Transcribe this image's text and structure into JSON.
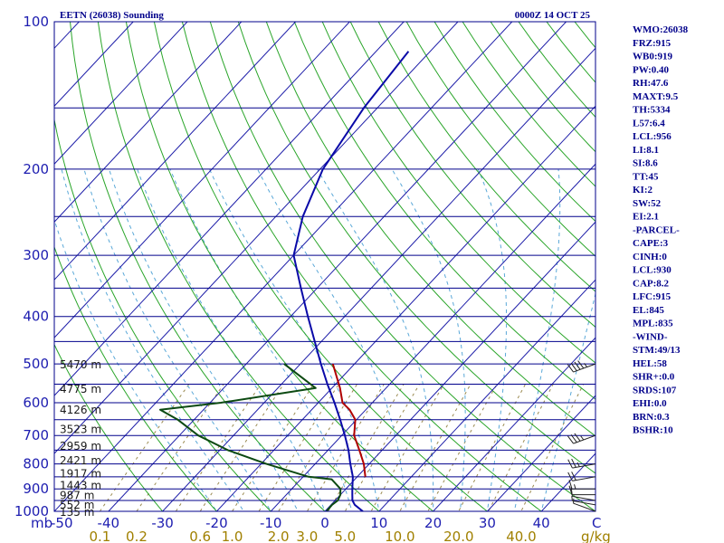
{
  "header": {
    "title": "EETN (26038) Sounding",
    "time": "0000Z 14 OCT 25"
  },
  "indices": [
    "WMO:26038",
    "FRZ:915",
    "WB0:919",
    "PW:0.40",
    "RH:47.6",
    "MAXT:9.5",
    "TH:5334",
    "L57:6.4",
    "LCL:956",
    "LI:8.1",
    "SI:8.6",
    "TT:45",
    "KI:2",
    "SW:52",
    "EI:2.1",
    "-PARCEL-",
    "CAPE:3",
    "CINH:0",
    "LCL:930",
    "CAP:8.2",
    "LFC:915",
    "EL:845",
    "MPL:835",
    "-WIND-",
    "STM:49/13",
    "HEL:58",
    "SHR+:0.0",
    "SRDS:107",
    "EHI:0.0",
    "BRN:0.3",
    "BSHR:10"
  ],
  "colors": {
    "frame": "#00008b",
    "isobar": "#00008b",
    "isotherm": "#1c1ca8",
    "dry_adiabat": "#2aa52a",
    "moist_adiabat": "#5aa8d8",
    "mixing_ratio": "#9a8a50",
    "temperature": "#0a0aa8",
    "dewpoint": "#0c4a12",
    "parcel": "#b00000"
  },
  "chart_data": {
    "type": "skew-t",
    "xlabel": "C",
    "ylabel": "mb",
    "ylim": [
      1000,
      100
    ],
    "xlim": [
      -50,
      50
    ],
    "pressure_labels": [
      {
        "p": 100,
        "label": "100"
      },
      {
        "p": 200,
        "label": "200"
      },
      {
        "p": 300,
        "label": "300"
      },
      {
        "p": 400,
        "label": "400"
      },
      {
        "p": 500,
        "label": "500"
      },
      {
        "p": 600,
        "label": "600"
      },
      {
        "p": 700,
        "label": "700"
      },
      {
        "p": 800,
        "label": "800"
      },
      {
        "p": 900,
        "label": "900"
      },
      {
        "p": 1000,
        "label": "1000"
      }
    ],
    "temperature_ticks": [
      {
        "t": -40,
        "label": "-40"
      },
      {
        "t": -30,
        "label": "-30"
      },
      {
        "t": -20,
        "label": "-20"
      },
      {
        "t": -10,
        "label": "-10"
      },
      {
        "t": 0,
        "label": "0"
      },
      {
        "t": 10,
        "label": "10"
      },
      {
        "t": 20,
        "label": "20"
      },
      {
        "t": 30,
        "label": "30"
      },
      {
        "t": 40,
        "label": "40"
      }
    ],
    "axis_corner_labels": {
      "left_unit": "mb",
      "left_value": "-50",
      "right_unit": "C",
      "mixing_unit": "g/kg"
    },
    "mixing_ratio_labels": [
      {
        "w": 0.1,
        "label": "0.1"
      },
      {
        "w": 0.2,
        "label": "0.2"
      },
      {
        "w": 0.6,
        "label": "0.6"
      },
      {
        "w": 1.0,
        "label": "1.0"
      },
      {
        "w": 2.0,
        "label": "2.0"
      },
      {
        "w": 3.0,
        "label": "3.0"
      },
      {
        "w": 5.0,
        "label": "5.0"
      },
      {
        "w": 10.0,
        "label": "10.0"
      },
      {
        "w": 20.0,
        "label": "20.0"
      },
      {
        "w": 40.0,
        "label": "40.0"
      }
    ],
    "height_labels": [
      {
        "p": 500,
        "label": "5470 m"
      },
      {
        "p": 560,
        "label": "4775 m"
      },
      {
        "p": 618,
        "label": "4126 m"
      },
      {
        "p": 678,
        "label": "3523 m"
      },
      {
        "p": 733,
        "label": "2959 m"
      },
      {
        "p": 785,
        "label": "2421 m"
      },
      {
        "p": 835,
        "label": "1917 m"
      },
      {
        "p": 882,
        "label": "1443 m"
      },
      {
        "p": 925,
        "label": "987 m"
      },
      {
        "p": 967,
        "label": "552 m"
      },
      {
        "p": 1000,
        "label": "135 m"
      }
    ],
    "series": [
      {
        "name": "Temperature",
        "points": [
          {
            "p": 1000,
            "t": 7.0
          },
          {
            "p": 970,
            "t": 4.4
          },
          {
            "p": 950,
            "t": 3.2
          },
          {
            "p": 925,
            "t": 2.2
          },
          {
            "p": 900,
            "t": 1.2
          },
          {
            "p": 850,
            "t": -0.8
          },
          {
            "p": 800,
            "t": -3.5
          },
          {
            "p": 750,
            "t": -6.2
          },
          {
            "p": 700,
            "t": -9.4
          },
          {
            "p": 650,
            "t": -13.0
          },
          {
            "p": 600,
            "t": -17.0
          },
          {
            "p": 550,
            "t": -21.5
          },
          {
            "p": 500,
            "t": -26.2
          },
          {
            "p": 450,
            "t": -31.2
          },
          {
            "p": 400,
            "t": -36.8
          },
          {
            "p": 350,
            "t": -43.0
          },
          {
            "p": 300,
            "t": -50.0
          },
          {
            "p": 250,
            "t": -55.0
          },
          {
            "p": 200,
            "t": -59.5
          },
          {
            "p": 150,
            "t": -62.5
          },
          {
            "p": 115,
            "t": -64.0
          }
        ]
      },
      {
        "name": "Dewpoint",
        "points": [
          {
            "p": 1000,
            "t": 0.3
          },
          {
            "p": 970,
            "t": 0.2
          },
          {
            "p": 950,
            "t": 0.5
          },
          {
            "p": 925,
            "t": 0.0
          },
          {
            "p": 900,
            "t": -1.0
          },
          {
            "p": 860,
            "t": -4.3
          },
          {
            "p": 850,
            "t": -9.0
          },
          {
            "p": 800,
            "t": -19.0
          },
          {
            "p": 750,
            "t": -28.5
          },
          {
            "p": 700,
            "t": -36.5
          },
          {
            "p": 650,
            "t": -43.0
          },
          {
            "p": 620,
            "t": -48.0
          },
          {
            "p": 600,
            "t": -38.0
          },
          {
            "p": 560,
            "t": -23.0
          },
          {
            "p": 500,
            "t": -33.0
          }
        ]
      },
      {
        "name": "Parcel",
        "points": [
          {
            "p": 850,
            "t": 1.5
          },
          {
            "p": 800,
            "t": -1.0
          },
          {
            "p": 750,
            "t": -4.2
          },
          {
            "p": 700,
            "t": -7.7
          },
          {
            "p": 650,
            "t": -10.2
          },
          {
            "p": 620,
            "t": -13.0
          },
          {
            "p": 600,
            "t": -15.5
          },
          {
            "p": 560,
            "t": -18.5
          },
          {
            "p": 500,
            "t": -24.0
          }
        ]
      }
    ],
    "wind_barbs": [
      {
        "p": 500,
        "dir": 250,
        "spd": 45
      },
      {
        "p": 700,
        "dir": 250,
        "spd": 35
      },
      {
        "p": 800,
        "dir": 260,
        "spd": 25
      },
      {
        "p": 850,
        "dir": 260,
        "spd": 20
      },
      {
        "p": 900,
        "dir": 270,
        "spd": 15
      },
      {
        "p": 925,
        "dir": 270,
        "spd": 10
      },
      {
        "p": 950,
        "dir": 280,
        "spd": 10
      },
      {
        "p": 970,
        "dir": 280,
        "spd": 5
      },
      {
        "p": 1000,
        "dir": 290,
        "spd": 5
      }
    ]
  }
}
